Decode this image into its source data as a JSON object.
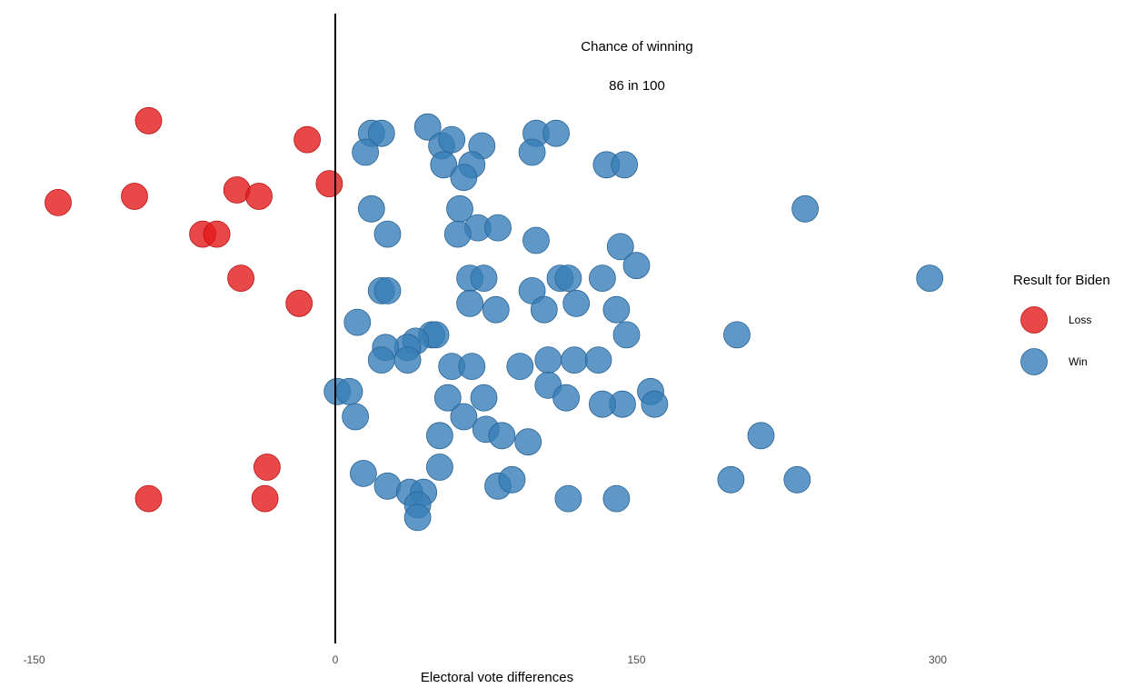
{
  "chart_data": {
    "type": "scatter",
    "title": "",
    "xlabel": "Electoral vote differences",
    "ylabel": "",
    "xlim": [
      -150,
      390
    ],
    "xticks": [
      -150,
      0,
      150,
      300
    ],
    "xtick_labels": [
      "-150",
      "0",
      "150",
      "300"
    ],
    "grid": false,
    "reference_line_x": 0,
    "annotation_title": "Chance of winning",
    "annotation_value": "86 in 100",
    "legend": {
      "title": "Result for Biden",
      "placement": "right",
      "entries": [
        {
          "label": "Loss",
          "color": "#e41a1c"
        },
        {
          "label": "Win",
          "color": "#377eb8"
        }
      ]
    },
    "series": [
      {
        "name": "Loss",
        "color": "#e41a1c",
        "points": [
          [
            -93,
            0.83
          ],
          [
            -14,
            0.8
          ],
          [
            -3,
            0.73
          ],
          [
            -138,
            0.7
          ],
          [
            -100,
            0.71
          ],
          [
            -49,
            0.72
          ],
          [
            -38,
            0.71
          ],
          [
            -66,
            0.65
          ],
          [
            -59,
            0.65
          ],
          [
            -47,
            0.58
          ],
          [
            -18,
            0.54
          ],
          [
            -34,
            0.28
          ],
          [
            -35,
            0.23
          ],
          [
            -93,
            0.23
          ]
        ]
      },
      {
        "name": "Win",
        "color": "#377eb8",
        "points": [
          [
            18,
            0.81
          ],
          [
            23,
            0.81
          ],
          [
            46,
            0.82
          ],
          [
            53,
            0.79
          ],
          [
            58,
            0.8
          ],
          [
            73,
            0.79
          ],
          [
            100,
            0.81
          ],
          [
            110,
            0.81
          ],
          [
            15,
            0.78
          ],
          [
            98,
            0.78
          ],
          [
            54,
            0.76
          ],
          [
            68,
            0.76
          ],
          [
            135,
            0.76
          ],
          [
            144,
            0.76
          ],
          [
            64,
            0.74
          ],
          [
            18,
            0.69
          ],
          [
            62,
            0.69
          ],
          [
            234,
            0.69
          ],
          [
            26,
            0.65
          ],
          [
            71,
            0.66
          ],
          [
            81,
            0.66
          ],
          [
            61,
            0.65
          ],
          [
            100,
            0.64
          ],
          [
            142,
            0.63
          ],
          [
            150,
            0.6
          ],
          [
            67,
            0.58
          ],
          [
            74,
            0.58
          ],
          [
            112,
            0.58
          ],
          [
            116,
            0.58
          ],
          [
            133,
            0.58
          ],
          [
            296,
            0.58
          ],
          [
            23,
            0.56
          ],
          [
            26,
            0.56
          ],
          [
            98,
            0.56
          ],
          [
            67,
            0.54
          ],
          [
            80,
            0.53
          ],
          [
            104,
            0.53
          ],
          [
            120,
            0.54
          ],
          [
            140,
            0.53
          ],
          [
            11,
            0.51
          ],
          [
            200,
            0.49
          ],
          [
            145,
            0.49
          ],
          [
            48,
            0.49
          ],
          [
            50,
            0.49
          ],
          [
            40,
            0.48
          ],
          [
            36,
            0.47
          ],
          [
            25,
            0.47
          ],
          [
            23,
            0.45
          ],
          [
            36,
            0.45
          ],
          [
            58,
            0.44
          ],
          [
            68,
            0.44
          ],
          [
            92,
            0.44
          ],
          [
            106,
            0.45
          ],
          [
            119,
            0.45
          ],
          [
            131,
            0.45
          ],
          [
            106,
            0.41
          ],
          [
            1,
            0.4
          ],
          [
            7,
            0.4
          ],
          [
            56,
            0.39
          ],
          [
            74,
            0.39
          ],
          [
            115,
            0.39
          ],
          [
            157,
            0.4
          ],
          [
            143,
            0.38
          ],
          [
            133,
            0.38
          ],
          [
            159,
            0.38
          ],
          [
            10,
            0.36
          ],
          [
            64,
            0.36
          ],
          [
            75,
            0.34
          ],
          [
            83,
            0.33
          ],
          [
            96,
            0.32
          ],
          [
            52,
            0.33
          ],
          [
            212,
            0.33
          ],
          [
            52,
            0.28
          ],
          [
            14,
            0.27
          ],
          [
            26,
            0.25
          ],
          [
            37,
            0.24
          ],
          [
            44,
            0.24
          ],
          [
            81,
            0.25
          ],
          [
            88,
            0.26
          ],
          [
            197,
            0.26
          ],
          [
            230,
            0.26
          ],
          [
            116,
            0.23
          ],
          [
            140,
            0.23
          ],
          [
            41,
            0.22
          ],
          [
            41,
            0.2
          ]
        ]
      }
    ]
  }
}
